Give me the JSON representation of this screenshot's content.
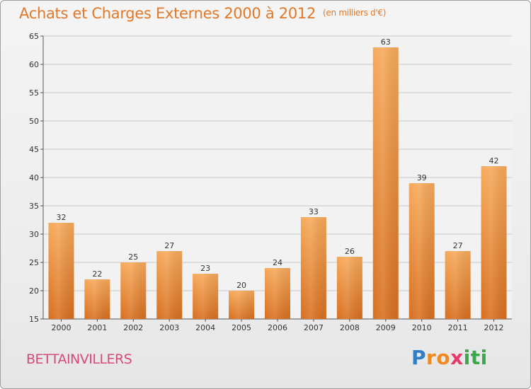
{
  "title": "Achats et Charges Externes 2000 à 2012",
  "unit": "(en milliers d'€)",
  "commune": "BETTAINVILLERS",
  "logo": {
    "text": "Proxiti",
    "letters": [
      {
        "ch": "P",
        "color": "#2f7fc8"
      },
      {
        "ch": "r",
        "color": "#f08a1e"
      },
      {
        "ch": "o",
        "color": "#f08a1e"
      },
      {
        "ch": "x",
        "color": "#e83a6a"
      },
      {
        "ch": "i",
        "color": "#3aa84a"
      },
      {
        "ch": "t",
        "color": "#3aa84a"
      },
      {
        "ch": "i",
        "color": "#3aa84a"
      }
    ]
  },
  "colors": {
    "title": "#e0792a",
    "commune": "#d64a7a",
    "bar_top": "#f6a95a",
    "bar_bottom": "#d86f1f",
    "grid": "#c8c8c8",
    "axis": "#555555",
    "text": "#333333"
  },
  "chart_data": {
    "type": "bar",
    "title": "Achats et Charges Externes 2000 à 2012",
    "subtitle": "(en milliers d'€)",
    "categories": [
      "2000",
      "2001",
      "2002",
      "2003",
      "2004",
      "2005",
      "2006",
      "2007",
      "2008",
      "2009",
      "2010",
      "2011",
      "2012"
    ],
    "values": [
      32,
      22,
      25,
      27,
      23,
      20,
      24,
      33,
      26,
      63,
      39,
      27,
      42
    ],
    "ylim": [
      15,
      65
    ],
    "yticks": [
      15,
      20,
      25,
      30,
      35,
      40,
      45,
      50,
      55,
      60,
      65
    ],
    "grid": true,
    "data_labels": true
  }
}
